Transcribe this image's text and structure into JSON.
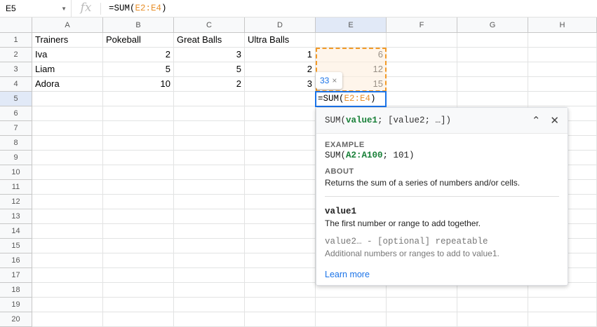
{
  "formula_bar": {
    "name_box": "E5",
    "fx": "fx",
    "formula_prefix": "=SUM(",
    "formula_ref": "E2:E4",
    "formula_suffix": ")"
  },
  "columns": [
    "A",
    "B",
    "C",
    "D",
    "E",
    "F",
    "G",
    "H"
  ],
  "rows": [
    [
      "Trainers",
      "Pokeball",
      "Great Balls",
      "Ultra Balls",
      "",
      "",
      "",
      ""
    ],
    [
      "Iva",
      "2",
      "3",
      "1",
      "6",
      "",
      "",
      ""
    ],
    [
      "Liam",
      "5",
      "5",
      "2",
      "12",
      "",
      "",
      ""
    ],
    [
      "Adora",
      "10",
      "2",
      "3",
      "15",
      "",
      "",
      ""
    ]
  ],
  "row_count": 20,
  "colors": {
    "accent": "#1a73e8",
    "range": "#f29a28",
    "arg": "#188038"
  },
  "preview": {
    "value": "33",
    "close": "×"
  },
  "active_cell": {
    "prefix": "=SUM(",
    "ref": "E2:E4",
    "suffix": ")"
  },
  "help": {
    "sig_fn": "SUM(",
    "sig_arg1": "value1",
    "sig_rest": "; [value2; …])",
    "collapse_icon": "chevron-up",
    "close_icon": "close",
    "example_label": "EXAMPLE",
    "example_fn": "SUM(",
    "example_arg": "A2:A100",
    "example_rest": "; 101)",
    "about_label": "ABOUT",
    "about_text": "Returns the sum of a series of numbers and/or cells.",
    "arg1_name": "value1",
    "arg1_desc": "The first number or range to add together.",
    "arg2_name": "value2… - [optional] repeatable",
    "arg2_desc": "Additional numbers or ranges to add to value1.",
    "learn_more": "Learn more"
  }
}
